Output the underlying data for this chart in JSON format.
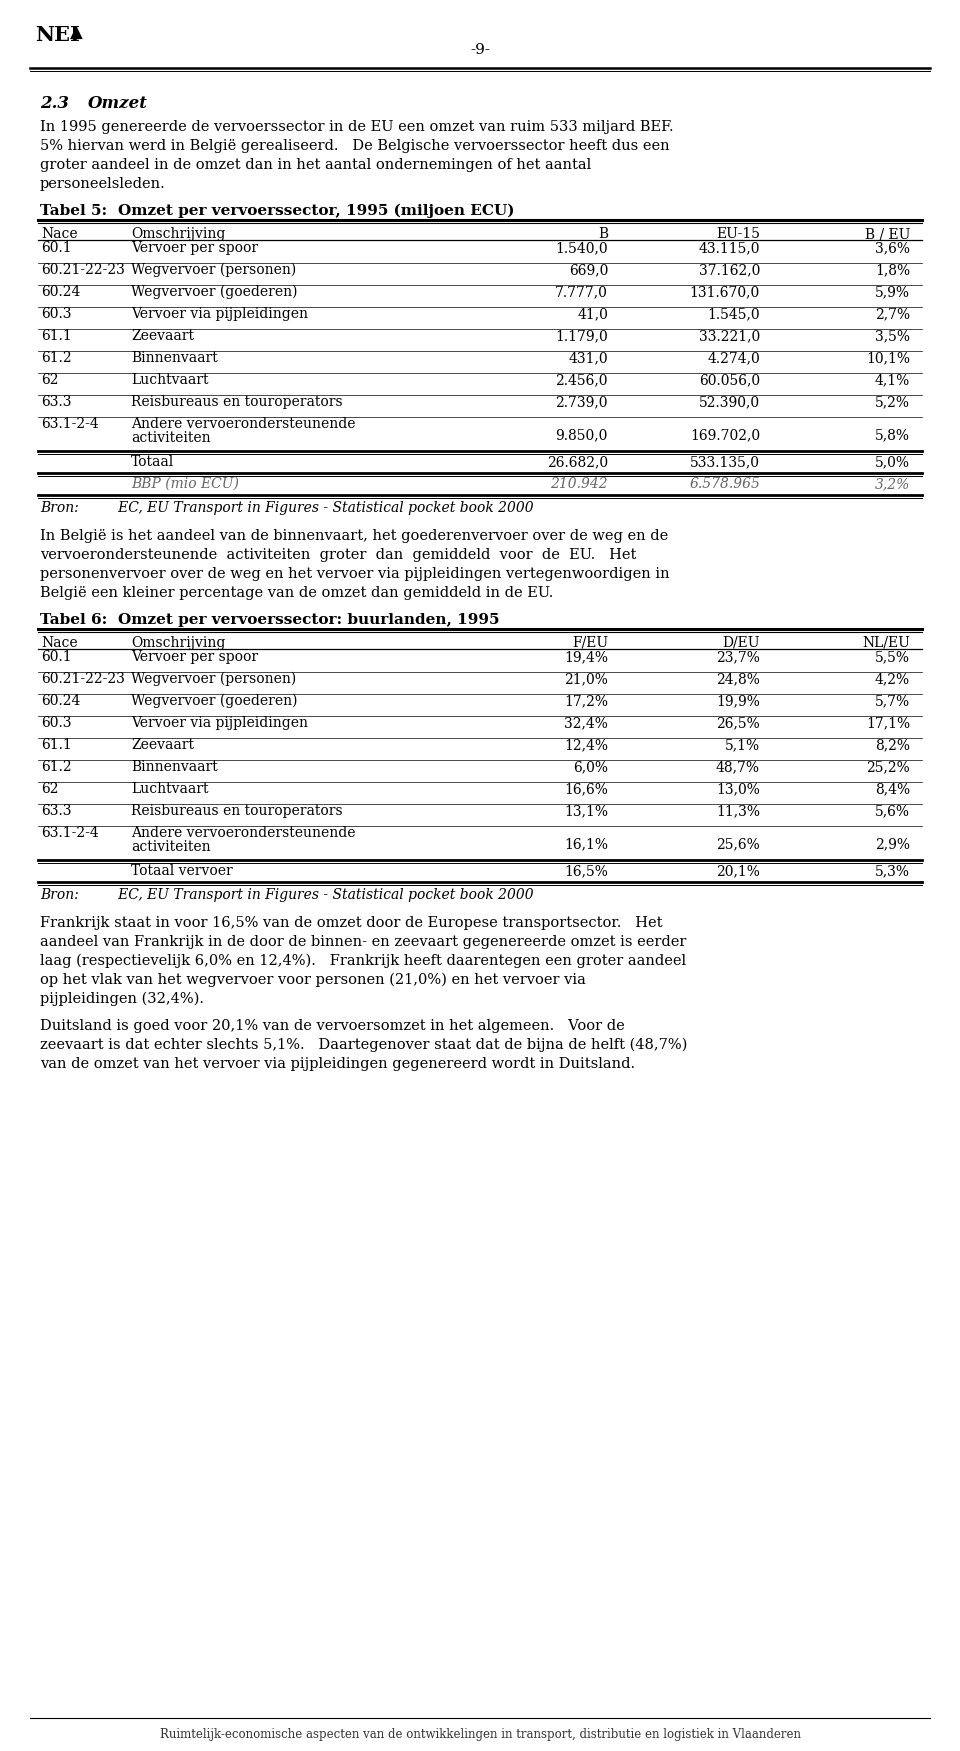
{
  "page_number": "-9-",
  "table5_headers": [
    "Nace",
    "Omschrijving",
    "B",
    "EU-15",
    "B / EU"
  ],
  "table5_rows": [
    [
      "60.1",
      "Vervoer per spoor",
      "1.540,0",
      "43.115,0",
      "3,6%"
    ],
    [
      "60.21-22-23",
      "Wegvervoer (personen)",
      "669,0",
      "37.162,0",
      "1,8%"
    ],
    [
      "60.24",
      "Wegvervoer (goederen)",
      "7.777,0",
      "131.670,0",
      "5,9%"
    ],
    [
      "60.3",
      "Vervoer via pijpleidingen",
      "41,0",
      "1.545,0",
      "2,7%"
    ],
    [
      "61.1",
      "Zeevaart",
      "1.179,0",
      "33.221,0",
      "3,5%"
    ],
    [
      "61.2",
      "Binnenvaart",
      "431,0",
      "4.274,0",
      "10,1%"
    ],
    [
      "62",
      "Luchtvaart",
      "2.456,0",
      "60.056,0",
      "4,1%"
    ],
    [
      "63.3",
      "Reisbureaus en touroperators",
      "2.739,0",
      "52.390,0",
      "5,2%"
    ],
    [
      "63.1-2-4",
      "Andere vervoerondersteunende\nactiviteiten",
      "9.850,0",
      "169.702,0",
      "5,8%"
    ]
  ],
  "table5_total_row": [
    "",
    "Totaal",
    "26.682,0",
    "533.135,0",
    "5,0%"
  ],
  "table5_bbp_row": [
    "",
    "BBP (mio ECU)",
    "210.942",
    "6.578.965",
    "3,2%"
  ],
  "table5_source": "Bron:         EC, EU Transport in Figures - Statistical pocket book 2000",
  "table6_headers": [
    "Nace",
    "Omschrijving",
    "F/EU",
    "D/EU",
    "NL/EU"
  ],
  "table6_rows": [
    [
      "60.1",
      "Vervoer per spoor",
      "19,4%",
      "23,7%",
      "5,5%"
    ],
    [
      "60.21-22-23",
      "Wegvervoer (personen)",
      "21,0%",
      "24,8%",
      "4,2%"
    ],
    [
      "60.24",
      "Wegvervoer (goederen)",
      "17,2%",
      "19,9%",
      "5,7%"
    ],
    [
      "60.3",
      "Vervoer via pijpleidingen",
      "32,4%",
      "26,5%",
      "17,1%"
    ],
    [
      "61.1",
      "Zeevaart",
      "12,4%",
      "5,1%",
      "8,2%"
    ],
    [
      "61.2",
      "Binnenvaart",
      "6,0%",
      "48,7%",
      "25,2%"
    ],
    [
      "62",
      "Luchtvaart",
      "16,6%",
      "13,0%",
      "8,4%"
    ],
    [
      "63.3",
      "Reisbureaus en touroperators",
      "13,1%",
      "11,3%",
      "5,6%"
    ],
    [
      "63.1-2-4",
      "Andere vervoerondersteunende\nactiviteiten",
      "16,1%",
      "25,6%",
      "2,9%"
    ]
  ],
  "table6_total_row": [
    "",
    "Totaal vervoer",
    "16,5%",
    "20,1%",
    "5,3%"
  ],
  "table6_source": "Bron:         EC, EU Transport in Figures - Statistical pocket book 2000",
  "footer_text": "Ruimtelijk-economische aspecten van de ontwikkelingen in transport, distributie en logistiek in Vlaanderen",
  "bg_color": "#ffffff"
}
